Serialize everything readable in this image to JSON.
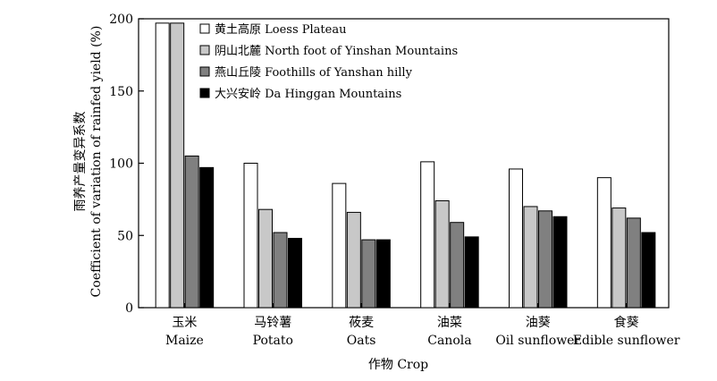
{
  "chart_data": {
    "type": "bar",
    "categories": [
      {
        "zh": "玉米",
        "en": "Maize"
      },
      {
        "zh": "马铃薯",
        "en": "Potato"
      },
      {
        "zh": "莜麦",
        "en": "Oats"
      },
      {
        "zh": "油菜",
        "en": "Canola"
      },
      {
        "zh": "油葵",
        "en": "Oil sunflower"
      },
      {
        "zh": "食葵",
        "en": "Edible sunflower"
      }
    ],
    "series": [
      {
        "name": "黄土高原 Loess Plateau",
        "color": "#ffffff",
        "values": [
          197,
          100,
          86,
          101,
          96,
          90
        ]
      },
      {
        "name": "阴山北麓 North foot of Yinshan Mountains",
        "color": "#c8c8c8",
        "values": [
          197,
          68,
          66,
          74,
          70,
          69
        ]
      },
      {
        "name": "燕山丘陵 Foothills of Yanshan hilly",
        "color": "#808080",
        "values": [
          105,
          52,
          47,
          59,
          67,
          62
        ]
      },
      {
        "name": "大兴安岭 Da Hinggan Mountains",
        "color": "#000000",
        "values": [
          97,
          48,
          47,
          49,
          63,
          52
        ]
      }
    ],
    "xlabel": "作物 Crop",
    "ylabel_zh": "雨养产量变异系数",
    "ylabel_en": "Coefficient of variation of rainfed yield (%)",
    "ylim": [
      0,
      200
    ],
    "yticks": [
      0,
      50,
      100,
      150,
      200
    ],
    "grid": false,
    "legend_position": "top-left inside"
  }
}
